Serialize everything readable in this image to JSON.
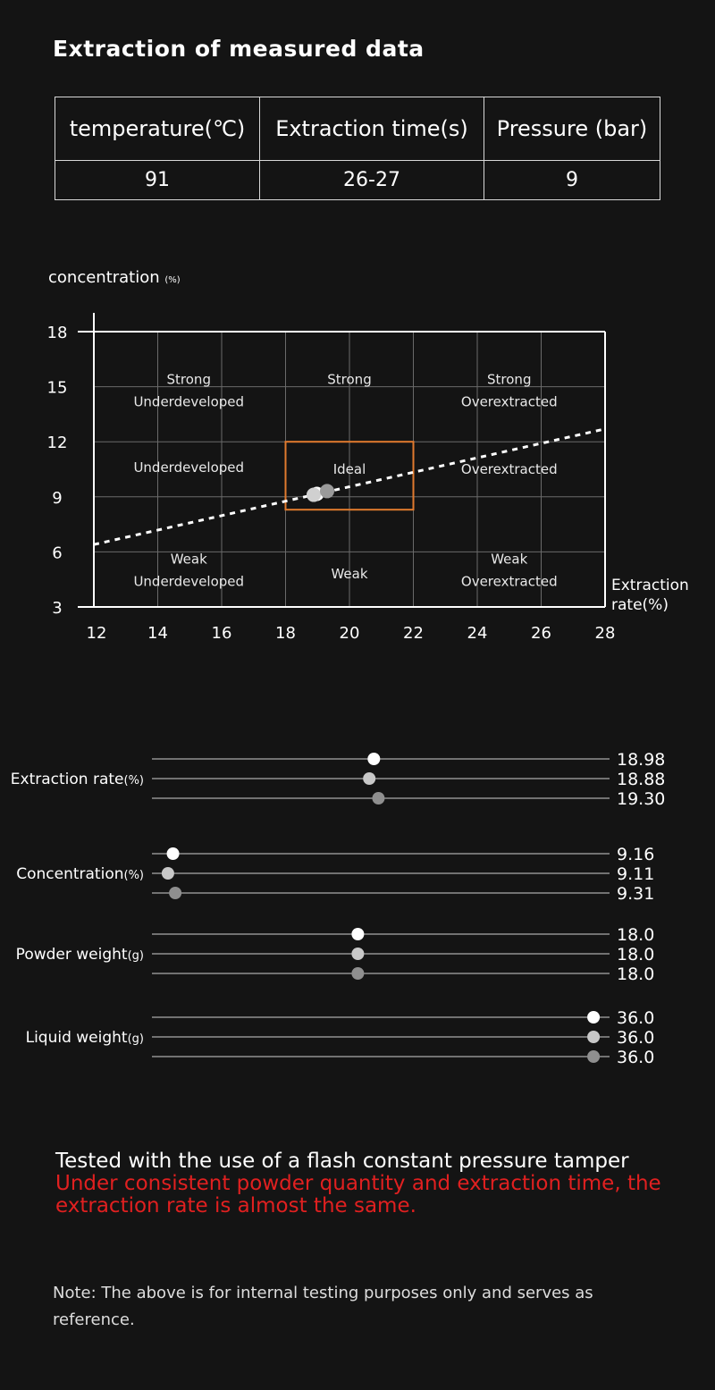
{
  "title": "Extraction of measured data",
  "table": {
    "headers": [
      "temperature(℃)",
      "Extraction time(s)",
      "Pressure (bar)"
    ],
    "values": [
      "91",
      "26-27",
      "9"
    ]
  },
  "chart_data": [
    {
      "type": "scatter",
      "ylabel": "concentration",
      "ylabel_unit": "(%)",
      "xlabel_line1": "Extraction",
      "xlabel_line2": "rate(%)",
      "xlim": [
        12,
        28
      ],
      "ylim": [
        3,
        18
      ],
      "xticks": [
        "12",
        "14",
        "16",
        "18",
        "20",
        "22",
        "24",
        "26",
        "28"
      ],
      "yticks": [
        "18",
        "15",
        "12",
        "9",
        "6",
        "3"
      ],
      "grid": true,
      "zones": [
        {
          "label1": "Strong",
          "label2": "Underdeveloped",
          "x": 15,
          "y": 15.4
        },
        {
          "label1": "Strong",
          "label2": "",
          "x": 20,
          "y": 15.4
        },
        {
          "label1": "Strong",
          "label2": "Overextracted",
          "x": 25,
          "y": 15.4
        },
        {
          "label1": "Underdeveloped",
          "label2": "",
          "x": 15,
          "y": 10.6
        },
        {
          "label1": "Ideal",
          "label2": "",
          "x": 20,
          "y": 10.5
        },
        {
          "label1": "Overextracted",
          "label2": "",
          "x": 25,
          "y": 10.5
        },
        {
          "label1": "Weak",
          "label2": "Underdeveloped",
          "x": 15,
          "y": 5.6
        },
        {
          "label1": "Weak",
          "label2": "",
          "x": 20,
          "y": 4.8
        },
        {
          "label1": "Weak",
          "label2": "Overextracted",
          "x": 25,
          "y": 5.6
        }
      ],
      "ideal_box": {
        "x": [
          18,
          22
        ],
        "y": [
          8.3,
          12
        ],
        "color": "#e07a2e"
      },
      "trend_line": {
        "from": [
          12,
          6.4
        ],
        "to": [
          28,
          12.7
        ]
      },
      "points": [
        {
          "x": 18.98,
          "y": 9.16,
          "color": "#ffffff"
        },
        {
          "x": 18.88,
          "y": 9.11,
          "color": "#d0d0d0"
        },
        {
          "x": 19.3,
          "y": 9.31,
          "color": "#9a9a9a"
        }
      ]
    },
    {
      "type": "dot-strip",
      "groups": [
        {
          "label": "Extraction rate",
          "unit": "(%)",
          "values": [
            18.98,
            18.88,
            19.3
          ],
          "labels": [
            "18.98",
            "18.88",
            "19.30"
          ],
          "fraction": [
            0.485,
            0.475,
            0.495
          ]
        },
        {
          "label": "Concentration",
          "unit": "(%)",
          "values": [
            9.16,
            9.11,
            9.31
          ],
          "labels": [
            "9.16",
            "9.11",
            "9.31"
          ],
          "fraction": [
            0.046,
            0.035,
            0.051
          ]
        },
        {
          "label": "Powder weight",
          "unit": "(g)",
          "values": [
            18.0,
            18.0,
            18.0
          ],
          "labels": [
            "18.0",
            "18.0",
            "18.0"
          ],
          "fraction": [
            0.45,
            0.45,
            0.45
          ]
        },
        {
          "label": "Liquid weight",
          "unit": "(g)",
          "values": [
            36.0,
            36.0,
            36.0
          ],
          "labels": [
            "36.0",
            "36.0",
            "36.0"
          ],
          "fraction": [
            0.965,
            0.965,
            0.965
          ]
        }
      ],
      "dot_colors": [
        "#ffffff",
        "#c8c8c8",
        "#8f8f8f"
      ]
    }
  ],
  "footer": {
    "line1": "Tested with the use of a flash constant pressure tamper",
    "line2": "Under consistent powder quantity and extraction time, the extraction rate is almost the same.",
    "note": "Note: The above is for internal testing purposes only and serves as reference."
  }
}
